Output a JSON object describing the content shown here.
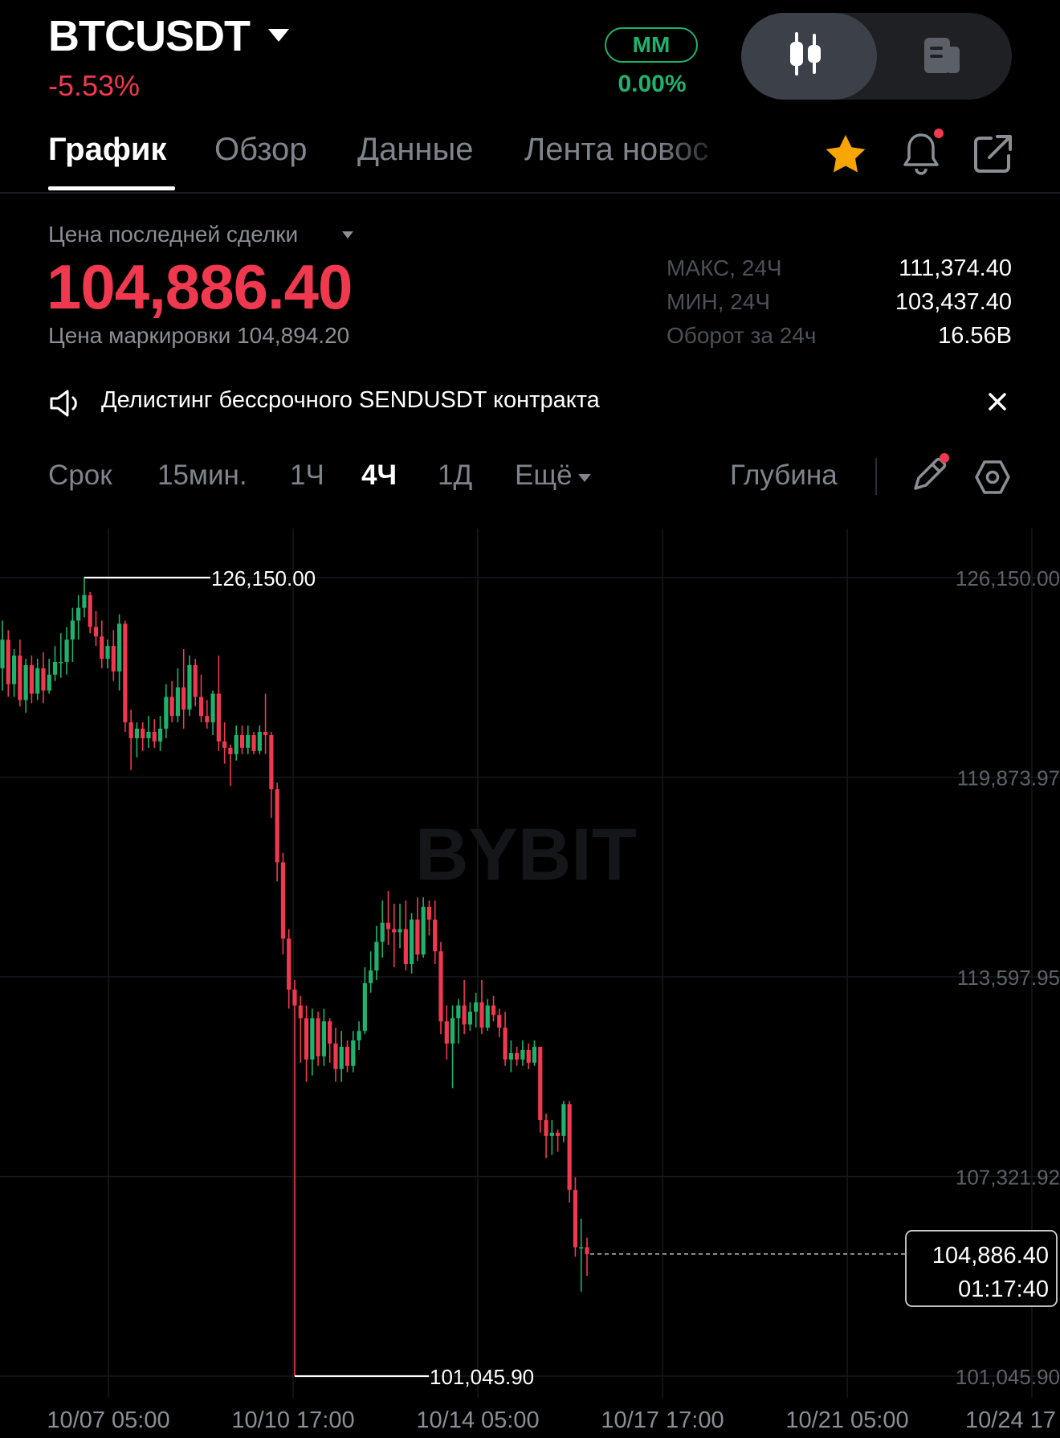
{
  "header": {
    "symbol": "BTCUSDT",
    "change": "-5.53%",
    "mm_label": "MM",
    "mm_value": "0.00%"
  },
  "tabs": [
    {
      "label": "График",
      "active": true
    },
    {
      "label": "Обзор",
      "active": false
    },
    {
      "label": "Данные",
      "active": false
    },
    {
      "label": "Лента новос",
      "active": false
    }
  ],
  "icons": {
    "favorite": "star-icon",
    "alerts": "bell-icon",
    "share": "share-icon",
    "view_chart": "candlestick-icon",
    "view_info": "news-icon",
    "announcement": "speaker-icon",
    "close": "close-icon",
    "draw": "pencil-icon",
    "settings": "hexagon-settings-icon"
  },
  "price": {
    "last_label": "Цена последней сделки",
    "last_price": "104,886.40",
    "mark_label": "Цена маркировки 104,894.20"
  },
  "stats": [
    {
      "label": "МАКС, 24Ч",
      "value": "111,374.40"
    },
    {
      "label": "МИН, 24Ч",
      "value": "103,437.40"
    },
    {
      "label": "Оборот за 24ч",
      "value": "16.56B"
    }
  ],
  "announcement": {
    "text": "Делистинг бессрочного SENDUSDT контракта"
  },
  "intervals": {
    "period_label": "Срок",
    "options": [
      "15мин.",
      "1Ч",
      "4Ч",
      "1Д"
    ],
    "active": "4Ч",
    "more_label": "Ещё",
    "depth_label": "Глубина"
  },
  "colors": {
    "up": "#20b26c",
    "down": "#f0394f",
    "accent_star": "#f7a600",
    "background": "#000000"
  },
  "chart_data": {
    "type": "candlestick",
    "interval": "4Ч",
    "watermark": "BYBIT",
    "y_ticks": [
      "126,150.00",
      "119,873.97",
      "113,597.95",
      "107,321.92",
      "101,045.90"
    ],
    "y_tick_values": [
      126150.0,
      119873.97,
      113597.95,
      107321.92,
      101045.9
    ],
    "x_ticks": [
      "10/07 05:00",
      "10/10 17:00",
      "10/14 05:00",
      "10/17 17:00",
      "10/21 05:00",
      "10/24 17"
    ],
    "ylim": [
      101045.9,
      126150.0
    ],
    "high_marker": "126,150.00",
    "low_marker": "101,045.90",
    "current_price": "104,886.40",
    "countdown": "01:17:40",
    "grid": true,
    "candles": [
      {
        "o": 123300,
        "h": 124800,
        "l": 122600,
        "c": 124200
      },
      {
        "o": 124200,
        "h": 124500,
        "l": 122400,
        "c": 122800
      },
      {
        "o": 122800,
        "h": 123900,
        "l": 122400,
        "c": 123700
      },
      {
        "o": 123700,
        "h": 124200,
        "l": 122100,
        "c": 122300
      },
      {
        "o": 122300,
        "h": 123600,
        "l": 121900,
        "c": 123400
      },
      {
        "o": 123400,
        "h": 123700,
        "l": 122200,
        "c": 122500
      },
      {
        "o": 122500,
        "h": 123600,
        "l": 122300,
        "c": 123300
      },
      {
        "o": 123300,
        "h": 123800,
        "l": 122200,
        "c": 122600
      },
      {
        "o": 122600,
        "h": 123600,
        "l": 122500,
        "c": 123100
      },
      {
        "o": 123100,
        "h": 124000,
        "l": 122900,
        "c": 123500
      },
      {
        "o": 123500,
        "h": 124400,
        "l": 123000,
        "c": 123500
      },
      {
        "o": 123500,
        "h": 124600,
        "l": 123100,
        "c": 124200
      },
      {
        "o": 124200,
        "h": 125200,
        "l": 123500,
        "c": 124800
      },
      {
        "o": 124800,
        "h": 125600,
        "l": 124200,
        "c": 125200
      },
      {
        "o": 125200,
        "h": 126150,
        "l": 124900,
        "c": 125600
      },
      {
        "o": 125600,
        "h": 125700,
        "l": 124400,
        "c": 124600
      },
      {
        "o": 124600,
        "h": 125100,
        "l": 124000,
        "c": 124300
      },
      {
        "o": 124300,
        "h": 124800,
        "l": 123300,
        "c": 123600
      },
      {
        "o": 123600,
        "h": 124200,
        "l": 123300,
        "c": 124000
      },
      {
        "o": 124000,
        "h": 124500,
        "l": 122900,
        "c": 123200
      },
      {
        "o": 123200,
        "h": 125000,
        "l": 122600,
        "c": 124700
      },
      {
        "o": 124700,
        "h": 124800,
        "l": 121300,
        "c": 121600
      },
      {
        "o": 121600,
        "h": 122000,
        "l": 120100,
        "c": 121100
      },
      {
        "o": 121100,
        "h": 121600,
        "l": 120500,
        "c": 121400
      },
      {
        "o": 121400,
        "h": 121600,
        "l": 120700,
        "c": 121100
      },
      {
        "o": 121100,
        "h": 121800,
        "l": 120800,
        "c": 121300
      },
      {
        "o": 121300,
        "h": 121700,
        "l": 120800,
        "c": 121000
      },
      {
        "o": 121000,
        "h": 121800,
        "l": 120700,
        "c": 121400
      },
      {
        "o": 121400,
        "h": 122800,
        "l": 121100,
        "c": 122400
      },
      {
        "o": 122400,
        "h": 122900,
        "l": 121600,
        "c": 121800
      },
      {
        "o": 121800,
        "h": 123300,
        "l": 121600,
        "c": 122700
      },
      {
        "o": 122700,
        "h": 123900,
        "l": 121400,
        "c": 122000
      },
      {
        "o": 122000,
        "h": 123700,
        "l": 121800,
        "c": 123400
      },
      {
        "o": 123400,
        "h": 123600,
        "l": 122100,
        "c": 122400
      },
      {
        "o": 122400,
        "h": 123100,
        "l": 121600,
        "c": 121800
      },
      {
        "o": 121800,
        "h": 122300,
        "l": 121400,
        "c": 121600
      },
      {
        "o": 121600,
        "h": 122600,
        "l": 121200,
        "c": 122500
      },
      {
        "o": 122500,
        "h": 123700,
        "l": 120700,
        "c": 121000
      },
      {
        "o": 121000,
        "h": 121600,
        "l": 120300,
        "c": 120800
      },
      {
        "o": 120800,
        "h": 120900,
        "l": 119600,
        "c": 120600
      },
      {
        "o": 120600,
        "h": 121500,
        "l": 120400,
        "c": 121200
      },
      {
        "o": 121200,
        "h": 121500,
        "l": 120600,
        "c": 120800
      },
      {
        "o": 120800,
        "h": 121500,
        "l": 120600,
        "c": 121200
      },
      {
        "o": 121200,
        "h": 121300,
        "l": 120600,
        "c": 120700
      },
      {
        "o": 120700,
        "h": 121500,
        "l": 120600,
        "c": 121300
      },
      {
        "o": 121300,
        "h": 122500,
        "l": 120600,
        "c": 121200
      },
      {
        "o": 121200,
        "h": 121300,
        "l": 118600,
        "c": 119500
      },
      {
        "o": 119500,
        "h": 119700,
        "l": 116600,
        "c": 117200
      },
      {
        "o": 117200,
        "h": 117500,
        "l": 114300,
        "c": 114800
      },
      {
        "o": 114800,
        "h": 115100,
        "l": 112600,
        "c": 113200
      },
      {
        "o": 113200,
        "h": 113500,
        "l": 101045.9,
        "c": 112700
      },
      {
        "o": 112700,
        "h": 113000,
        "l": 110900,
        "c": 112300
      },
      {
        "o": 112300,
        "h": 112700,
        "l": 110300,
        "c": 111000
      },
      {
        "o": 111000,
        "h": 112600,
        "l": 110500,
        "c": 112300
      },
      {
        "o": 112300,
        "h": 112500,
        "l": 110800,
        "c": 111100
      },
      {
        "o": 111100,
        "h": 112600,
        "l": 110800,
        "c": 112200
      },
      {
        "o": 112200,
        "h": 112300,
        "l": 110900,
        "c": 111500
      },
      {
        "o": 111500,
        "h": 112000,
        "l": 110300,
        "c": 110700
      },
      {
        "o": 110700,
        "h": 111900,
        "l": 110300,
        "c": 111400
      },
      {
        "o": 111400,
        "h": 111600,
        "l": 110600,
        "c": 110800
      },
      {
        "o": 110800,
        "h": 111900,
        "l": 110600,
        "c": 111600
      },
      {
        "o": 111600,
        "h": 112200,
        "l": 111300,
        "c": 111900
      },
      {
        "o": 111900,
        "h": 113900,
        "l": 111800,
        "c": 113400
      },
      {
        "o": 113400,
        "h": 114400,
        "l": 113100,
        "c": 113800
      },
      {
        "o": 113800,
        "h": 115200,
        "l": 113500,
        "c": 114700
      },
      {
        "o": 114700,
        "h": 116000,
        "l": 114200,
        "c": 115300
      },
      {
        "o": 115300,
        "h": 116300,
        "l": 114600,
        "c": 115100
      },
      {
        "o": 115100,
        "h": 115900,
        "l": 113900,
        "c": 115000
      },
      {
        "o": 115000,
        "h": 115900,
        "l": 114500,
        "c": 115100
      },
      {
        "o": 115100,
        "h": 116000,
        "l": 113800,
        "c": 114000
      },
      {
        "o": 114000,
        "h": 115600,
        "l": 113700,
        "c": 115400
      },
      {
        "o": 115400,
        "h": 116100,
        "l": 114100,
        "c": 114300
      },
      {
        "o": 114300,
        "h": 116100,
        "l": 114200,
        "c": 115800
      },
      {
        "o": 115800,
        "h": 116000,
        "l": 114900,
        "c": 115400
      },
      {
        "o": 115400,
        "h": 116000,
        "l": 114000,
        "c": 114400
      },
      {
        "o": 114400,
        "h": 114700,
        "l": 111800,
        "c": 112200
      },
      {
        "o": 112200,
        "h": 112700,
        "l": 111000,
        "c": 111500
      },
      {
        "o": 111500,
        "h": 112700,
        "l": 110100,
        "c": 112300
      },
      {
        "o": 112300,
        "h": 112900,
        "l": 111500,
        "c": 112700
      },
      {
        "o": 112700,
        "h": 113500,
        "l": 111800,
        "c": 112100
      },
      {
        "o": 112100,
        "h": 112800,
        "l": 111900,
        "c": 112500
      },
      {
        "o": 112500,
        "h": 113100,
        "l": 112000,
        "c": 112800
      },
      {
        "o": 112800,
        "h": 113500,
        "l": 111800,
        "c": 112000
      },
      {
        "o": 112000,
        "h": 112900,
        "l": 111900,
        "c": 112700
      },
      {
        "o": 112700,
        "h": 113000,
        "l": 112200,
        "c": 112400
      },
      {
        "o": 112400,
        "h": 112600,
        "l": 111700,
        "c": 112000
      },
      {
        "o": 112000,
        "h": 112500,
        "l": 110800,
        "c": 111000
      },
      {
        "o": 111000,
        "h": 111600,
        "l": 110600,
        "c": 111200
      },
      {
        "o": 111200,
        "h": 111400,
        "l": 110800,
        "c": 111000
      },
      {
        "o": 111000,
        "h": 111600,
        "l": 110800,
        "c": 111300
      },
      {
        "o": 111300,
        "h": 111500,
        "l": 110700,
        "c": 110900
      },
      {
        "o": 110900,
        "h": 111600,
        "l": 110800,
        "c": 111400
      },
      {
        "o": 111400,
        "h": 111400,
        "l": 108700,
        "c": 109100
      },
      {
        "o": 109100,
        "h": 109300,
        "l": 107900,
        "c": 108600
      },
      {
        "o": 108600,
        "h": 109100,
        "l": 108000,
        "c": 108700
      },
      {
        "o": 108700,
        "h": 108800,
        "l": 108100,
        "c": 108600
      },
      {
        "o": 108600,
        "h": 109700,
        "l": 108400,
        "c": 109600
      },
      {
        "o": 109600,
        "h": 109700,
        "l": 106500,
        "c": 106900
      },
      {
        "o": 106900,
        "h": 107300,
        "l": 104800,
        "c": 105100
      },
      {
        "o": 105100,
        "h": 106000,
        "l": 103700,
        "c": 105100
      },
      {
        "o": 105100,
        "h": 105400,
        "l": 104200,
        "c": 104886.4
      }
    ]
  }
}
